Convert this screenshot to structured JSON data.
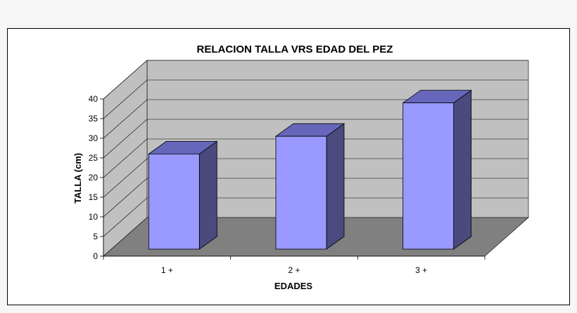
{
  "chart_data": {
    "type": "bar",
    "title": "RELACION TALLA VRS EDAD DEL PEZ",
    "xlabel": "EDADES",
    "ylabel": "TALLA (cm)",
    "categories": [
      "1 +",
      "2 +",
      "3 +"
    ],
    "values": [
      26,
      30.5,
      39
    ],
    "ylim": [
      0,
      40
    ],
    "yticks": [
      0,
      5,
      10,
      15,
      20,
      25,
      30,
      35,
      40
    ],
    "grid": true,
    "style": "3d",
    "colors": {
      "bar_front": "#9999ff",
      "bar_top": "#6666bb",
      "bar_side": "#4a4a7e",
      "back_wall": "#c0c0c0",
      "floor": "#808080"
    }
  }
}
